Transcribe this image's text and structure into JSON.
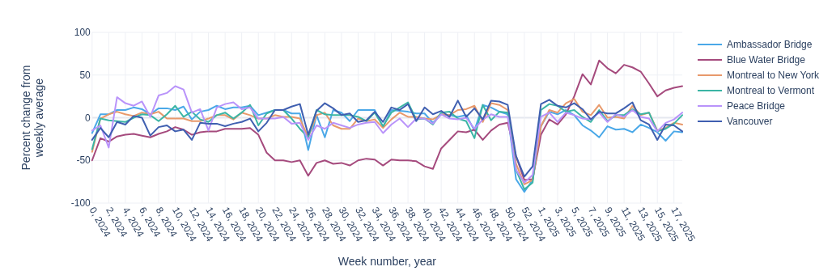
{
  "chart_data": {
    "type": "line",
    "xlabel": "Week number, year",
    "ylabel": "Percent change from\nweekly average",
    "categories": [
      "0, 2024",
      null,
      "2, 2024",
      null,
      "4, 2024",
      null,
      "6, 2024",
      null,
      "8, 2024",
      null,
      "10, 2024",
      null,
      "12, 2024",
      null,
      "14, 2024",
      null,
      "16, 2024",
      null,
      "18, 2024",
      null,
      "20, 2024",
      null,
      "22, 2024",
      null,
      "24, 2024",
      null,
      "26, 2024",
      null,
      "28, 2024",
      null,
      "30, 2024",
      null,
      "32, 2024",
      null,
      "34, 2024",
      null,
      "36, 2024",
      null,
      "38, 2024",
      null,
      "40, 2024",
      null,
      "42, 2024",
      null,
      "44, 2024",
      null,
      "46, 2024",
      null,
      "48, 2024",
      null,
      "50, 2024",
      null,
      "52, 2024",
      null,
      "1, 2025",
      null,
      "3, 2025",
      null,
      "5, 2025",
      null,
      "7, 2025",
      null,
      "9, 2025",
      null,
      "11, 2025",
      null,
      "13, 2025",
      null,
      "15, 2025",
      null,
      "17, 2025",
      null
    ],
    "ylim": [
      -100,
      100
    ],
    "yticks": [
      -100,
      -50,
      0,
      50,
      100
    ],
    "grid": true,
    "legend": "top right",
    "marker": "none",
    "line_style": "solid",
    "series": [
      {
        "name": "Ambassador Bridge",
        "color": "#4aa8e8",
        "values": [
          -18,
          4,
          4,
          9,
          9,
          12,
          10,
          4,
          11,
          11,
          9,
          13,
          -2,
          7,
          9,
          14,
          10,
          12,
          12,
          14,
          3,
          6,
          9,
          9,
          5,
          5,
          -38,
          3,
          -23,
          9,
          6,
          -4,
          9,
          9,
          9,
          -11,
          9,
          8,
          7,
          5,
          5,
          -6,
          4,
          3,
          1,
          3,
          -15,
          15,
          12,
          7,
          4,
          -72,
          -87,
          -73,
          -10,
          7,
          4,
          9,
          3,
          -9,
          -15,
          -23,
          -10,
          -14,
          -13,
          -17,
          -8,
          -12,
          -17,
          -27,
          -16,
          -17
        ]
      },
      {
        "name": "Blue Water Bridge",
        "color": "#a54a7d",
        "values": [
          -50,
          -24,
          -28,
          -22,
          -20,
          -19,
          -21,
          -23,
          -19,
          -16,
          -11,
          -14,
          -20,
          -17,
          -16,
          -16,
          -13,
          -13,
          -13,
          -12,
          -20,
          -41,
          -50,
          -50,
          -52,
          -50,
          -68,
          -53,
          -50,
          -54,
          -53,
          -56,
          -50,
          -48,
          -49,
          -56,
          -49,
          -50,
          -50,
          -51,
          -57,
          -60,
          -36,
          -26,
          -16,
          -17,
          -14,
          -26,
          -15,
          -8,
          -6,
          -45,
          -73,
          -72,
          -20,
          -2,
          -8,
          4,
          25,
          51,
          39,
          67,
          58,
          52,
          62,
          59,
          54,
          40,
          25,
          32,
          35,
          37
        ]
      },
      {
        "name": "Montreal to New York",
        "color": "#e8996b",
        "values": [
          -40,
          -1,
          4,
          7,
          4,
          2,
          6,
          4,
          7,
          -1,
          -1,
          -1,
          -4,
          -4,
          -1,
          3,
          3,
          -2,
          6,
          3,
          -1,
          -1,
          3,
          1,
          1,
          -1,
          -23,
          3,
          6,
          -9,
          -13,
          -13,
          -1,
          -4,
          -2,
          -12,
          -2,
          6,
          1,
          1,
          -1,
          -2,
          4,
          3,
          9,
          10,
          14,
          -5,
          17,
          15,
          9,
          -54,
          -78,
          -73,
          -10,
          9,
          6,
          17,
          22,
          7,
          3,
          15,
          0,
          1,
          -1,
          14,
          3,
          6,
          -15,
          -12,
          -6,
          -8
        ]
      },
      {
        "name": "Montreal to Vermont",
        "color": "#3bb5a5",
        "values": [
          -37,
          -1,
          -3,
          -4,
          -5,
          0,
          4,
          3,
          -4,
          4,
          14,
          1,
          7,
          -2,
          -5,
          3,
          6,
          -1,
          6,
          15,
          -9,
          5,
          9,
          9,
          -1,
          -13,
          -23,
          9,
          4,
          3,
          3,
          3,
          1,
          -4,
          6,
          -10,
          6,
          12,
          18,
          -2,
          -1,
          -8,
          6,
          7,
          -1,
          -4,
          -24,
          15,
          -3,
          7,
          6,
          -61,
          -84,
          -76,
          9,
          16,
          14,
          7,
          9,
          1,
          -5,
          9,
          -4,
          3,
          3,
          10,
          4,
          6,
          -16,
          -13,
          -7,
          3
        ]
      },
      {
        "name": "Peace Bridge",
        "color": "#b993fa",
        "values": [
          -15,
          -9,
          -35,
          24,
          17,
          14,
          19,
          1,
          26,
          29,
          37,
          33,
          6,
          10,
          -15,
          12,
          16,
          18,
          10,
          12,
          -1,
          -1,
          -1,
          1,
          -7,
          -6,
          -26,
          -9,
          -13,
          -6,
          -9,
          -12,
          -8,
          -6,
          -5,
          -18,
          -8,
          -1,
          -11,
          -1,
          -1,
          -7,
          4,
          -1,
          -2,
          0,
          -13,
          -2,
          4,
          1,
          1,
          -61,
          -76,
          -67,
          1,
          6,
          -5,
          6,
          3,
          -1,
          -2,
          6,
          -5,
          4,
          1,
          9,
          1,
          -1,
          -16,
          -6,
          -2,
          6
        ]
      },
      {
        "name": "Vancouver",
        "color": "#3f5fb0",
        "values": [
          -26,
          -12,
          -23,
          -5,
          -8,
          2,
          0,
          -21,
          -11,
          -9,
          -16,
          -14,
          -26,
          -6,
          -7,
          -7,
          -10,
          -7,
          -5,
          -1,
          -16,
          -6,
          9,
          9,
          13,
          16,
          -20,
          8,
          17,
          11,
          3,
          5,
          -5,
          -3,
          7,
          -5,
          12,
          9,
          16,
          -4,
          12,
          4,
          8,
          1,
          20,
          1,
          11,
          -2,
          20,
          19,
          15,
          -45,
          -69,
          -57,
          16,
          21,
          14,
          12,
          17,
          10,
          -2,
          7,
          5,
          5,
          11,
          18,
          -3,
          -8,
          -26,
          -8,
          -9,
          -16
        ]
      }
    ]
  }
}
